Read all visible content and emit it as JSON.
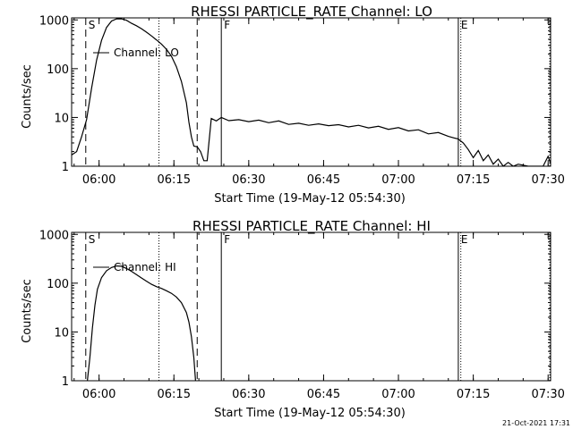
{
  "footer": {
    "date": "21-Oct-2021 17:31"
  },
  "chart_data": [
    {
      "type": "line",
      "title": "RHESSI PARTICLE_RATE Channel: LO",
      "xlabel": "Start Time (19-May-12 05:54:30)",
      "ylabel": "Counts/sec",
      "yscale": "log",
      "ylim": [
        1,
        1100
      ],
      "xlim_minutes_after_0554_30": [
        0,
        96
      ],
      "x_ticks": [
        "06:00",
        "06:15",
        "06:30",
        "06:45",
        "07:00",
        "07:15",
        "07:30"
      ],
      "y_ticks": [
        "1",
        "10",
        "100",
        "1000"
      ],
      "legend": {
        "position": "top-left",
        "entries": [
          "Channel: LO"
        ]
      },
      "markers": [
        {
          "label": "S",
          "time": "05:57:20",
          "style": "dashed"
        },
        {
          "label": "",
          "time": "06:12:00",
          "style": "dotted"
        },
        {
          "label": "",
          "time": "06:19:40",
          "style": "dashed"
        },
        {
          "label": "F",
          "time": "06:24:30",
          "style": "solid"
        },
        {
          "label": "E",
          "time": "07:12:00",
          "style": "solid"
        },
        {
          "label": "",
          "time": "07:12:30",
          "style": "dotted"
        },
        {
          "label": "",
          "time": "07:30:20",
          "style": "dotted"
        }
      ],
      "series": [
        {
          "name": "Channel: LO",
          "points": [
            [
              "05:54:30",
              1.7
            ],
            [
              "05:55:30",
              2.0
            ],
            [
              "05:56:30",
              4.0
            ],
            [
              "05:57:30",
              9.0
            ],
            [
              "05:58:30",
              40
            ],
            [
              "05:59:30",
              150
            ],
            [
              "06:00:30",
              380
            ],
            [
              "06:01:30",
              700
            ],
            [
              "06:02:30",
              950
            ],
            [
              "06:03:30",
              1050
            ],
            [
              "06:04:30",
              1050
            ],
            [
              "06:05:30",
              980
            ],
            [
              "06:06:30",
              850
            ],
            [
              "06:07:30",
              760
            ],
            [
              "06:08:30",
              660
            ],
            [
              "06:09:30",
              560
            ],
            [
              "06:10:30",
              470
            ],
            [
              "06:11:30",
              390
            ],
            [
              "06:12:30",
              320
            ],
            [
              "06:13:30",
              250
            ],
            [
              "06:14:30",
              180
            ],
            [
              "06:15:30",
              110
            ],
            [
              "06:16:30",
              55
            ],
            [
              "06:17:30",
              20
            ],
            [
              "06:18:00",
              8
            ],
            [
              "06:18:30",
              4
            ],
            [
              "06:19:00",
              2.6
            ],
            [
              "06:19:40",
              2.5
            ],
            [
              "06:20:20",
              2.0
            ],
            [
              "06:21:00",
              1.3
            ],
            [
              "06:21:40",
              1.3
            ],
            [
              "06:22:30",
              9.5
            ],
            [
              "06:23:30",
              8.5
            ],
            [
              "06:24:30",
              10
            ],
            [
              "06:26:00",
              8.6
            ],
            [
              "06:28:00",
              9.0
            ],
            [
              "06:30:00",
              8.2
            ],
            [
              "06:32:00",
              8.8
            ],
            [
              "06:34:00",
              7.8
            ],
            [
              "06:36:00",
              8.5
            ],
            [
              "06:38:00",
              7.2
            ],
            [
              "06:40:00",
              7.6
            ],
            [
              "06:42:00",
              6.9
            ],
            [
              "06:44:00",
              7.4
            ],
            [
              "06:46:00",
              6.8
            ],
            [
              "06:48:00",
              7.1
            ],
            [
              "06:50:00",
              6.4
            ],
            [
              "06:52:00",
              6.9
            ],
            [
              "06:54:00",
              6.1
            ],
            [
              "06:56:00",
              6.6
            ],
            [
              "06:58:00",
              5.7
            ],
            [
              "07:00:00",
              6.2
            ],
            [
              "07:02:00",
              5.3
            ],
            [
              "07:04:00",
              5.6
            ],
            [
              "07:06:00",
              4.6
            ],
            [
              "07:08:00",
              4.9
            ],
            [
              "07:10:00",
              4.1
            ],
            [
              "07:12:00",
              3.6
            ],
            [
              "07:13:00",
              3.0
            ],
            [
              "07:14:00",
              2.2
            ],
            [
              "07:15:00",
              1.5
            ],
            [
              "07:16:00",
              2.1
            ],
            [
              "07:17:00",
              1.3
            ],
            [
              "07:18:00",
              1.7
            ],
            [
              "07:19:00",
              1.1
            ],
            [
              "07:20:00",
              1.4
            ],
            [
              "07:21:00",
              1.0
            ],
            [
              "07:22:00",
              1.2
            ],
            [
              "07:23:00",
              1.0
            ],
            [
              "07:24:00",
              1.1
            ],
            [
              "07:26:00",
              1.0
            ],
            [
              "07:29:00",
              1.0
            ],
            [
              "07:30:00",
              1.6
            ],
            [
              "07:30:40",
              1.0
            ]
          ]
        }
      ]
    },
    {
      "type": "line",
      "title": "RHESSI PARTICLE_RATE Channel: HI",
      "xlabel": "Start Time (19-May-12 05:54:30)",
      "ylabel": "Counts/sec",
      "yscale": "log",
      "ylim": [
        1,
        1100
      ],
      "xlim_minutes_after_0554_30": [
        0,
        96
      ],
      "x_ticks": [
        "06:00",
        "06:15",
        "06:30",
        "06:45",
        "07:00",
        "07:15",
        "07:30"
      ],
      "y_ticks": [
        "1",
        "10",
        "100",
        "1000"
      ],
      "legend": {
        "position": "top-left",
        "entries": [
          "Channel: HI"
        ]
      },
      "markers": [
        {
          "label": "S",
          "time": "05:57:20",
          "style": "dashed"
        },
        {
          "label": "",
          "time": "06:12:00",
          "style": "dotted"
        },
        {
          "label": "",
          "time": "06:19:40",
          "style": "dashed"
        },
        {
          "label": "F",
          "time": "06:24:30",
          "style": "solid"
        },
        {
          "label": "E",
          "time": "07:12:00",
          "style": "solid"
        },
        {
          "label": "",
          "time": "07:12:30",
          "style": "dotted"
        },
        {
          "label": "",
          "time": "07:30:20",
          "style": "dotted"
        }
      ],
      "series": [
        {
          "name": "Channel: HI",
          "points": [
            [
              "05:57:40",
              1.0
            ],
            [
              "05:58:10",
              3
            ],
            [
              "05:58:40",
              12
            ],
            [
              "05:59:10",
              35
            ],
            [
              "05:59:40",
              75
            ],
            [
              "06:00:30",
              130
            ],
            [
              "06:01:30",
              180
            ],
            [
              "06:02:30",
              210
            ],
            [
              "06:03:30",
              225
            ],
            [
              "06:04:30",
              222
            ],
            [
              "06:05:30",
              200
            ],
            [
              "06:06:30",
              175
            ],
            [
              "06:07:30",
              150
            ],
            [
              "06:08:30",
              128
            ],
            [
              "06:09:30",
              110
            ],
            [
              "06:10:30",
              95
            ],
            [
              "06:11:30",
              85
            ],
            [
              "06:12:30",
              78
            ],
            [
              "06:13:30",
              70
            ],
            [
              "06:14:30",
              62
            ],
            [
              "06:15:30",
              52
            ],
            [
              "06:16:30",
              40
            ],
            [
              "06:17:30",
              25
            ],
            [
              "06:18:00",
              16
            ],
            [
              "06:18:30",
              8
            ],
            [
              "06:19:00",
              3
            ],
            [
              "06:19:20",
              1.0
            ]
          ]
        }
      ]
    }
  ]
}
